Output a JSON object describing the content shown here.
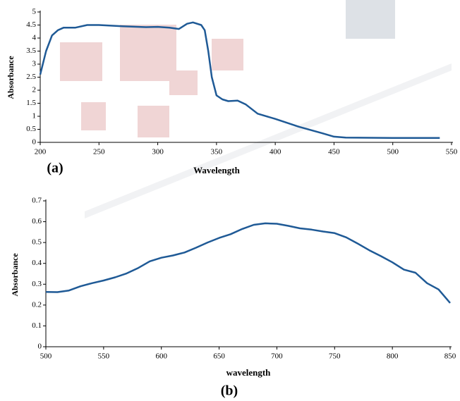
{
  "chart_data": [
    {
      "type": "line",
      "annotation": "(a)",
      "xlabel": "Wavelength",
      "ylabel": "Absorbance",
      "color": "#1f5a96",
      "x": [
        200,
        205,
        210,
        215,
        220,
        230,
        240,
        250,
        270,
        290,
        300,
        310,
        318,
        325,
        330,
        337,
        340,
        343,
        346,
        350,
        355,
        360,
        368,
        375,
        385,
        400,
        420,
        440,
        450,
        460,
        500,
        540
      ],
      "values": [
        2.6,
        3.5,
        4.1,
        4.3,
        4.4,
        4.4,
        4.5,
        4.5,
        4.45,
        4.42,
        4.43,
        4.4,
        4.35,
        4.55,
        4.6,
        4.5,
        4.3,
        3.5,
        2.5,
        1.8,
        1.65,
        1.58,
        1.6,
        1.45,
        1.1,
        0.9,
        0.6,
        0.35,
        0.22,
        0.18,
        0.17,
        0.17
      ],
      "xlim": [
        200,
        550
      ],
      "xticks": [
        200,
        250,
        300,
        350,
        400,
        450,
        500,
        550
      ],
      "ylim": [
        0,
        5
      ],
      "yticks": [
        0,
        0.5,
        1,
        1.5,
        2,
        2.5,
        3,
        3.5,
        4,
        4.5,
        5
      ]
    },
    {
      "type": "line",
      "annotation": "(b)",
      "xlabel": "wavelength",
      "ylabel": "Absorbance",
      "color": "#1f5a96",
      "x": [
        500,
        510,
        520,
        530,
        540,
        550,
        560,
        570,
        580,
        590,
        600,
        610,
        620,
        630,
        640,
        650,
        660,
        670,
        680,
        690,
        700,
        710,
        720,
        730,
        740,
        750,
        760,
        770,
        780,
        790,
        800,
        810,
        820,
        830,
        840,
        850
      ],
      "values": [
        0.263,
        0.262,
        0.27,
        0.29,
        0.305,
        0.318,
        0.333,
        0.352,
        0.378,
        0.41,
        0.427,
        0.438,
        0.452,
        0.475,
        0.5,
        0.522,
        0.54,
        0.565,
        0.585,
        0.592,
        0.59,
        0.58,
        0.568,
        0.562,
        0.553,
        0.545,
        0.525,
        0.495,
        0.463,
        0.435,
        0.405,
        0.37,
        0.355,
        0.305,
        0.275,
        0.21
      ],
      "xlim": [
        500,
        850
      ],
      "xticks": [
        500,
        550,
        600,
        650,
        700,
        750,
        800,
        850
      ],
      "ylim": [
        0,
        0.7
      ],
      "yticks": [
        0,
        0.1,
        0.2,
        0.3,
        0.4,
        0.5,
        0.6,
        0.7
      ]
    }
  ]
}
